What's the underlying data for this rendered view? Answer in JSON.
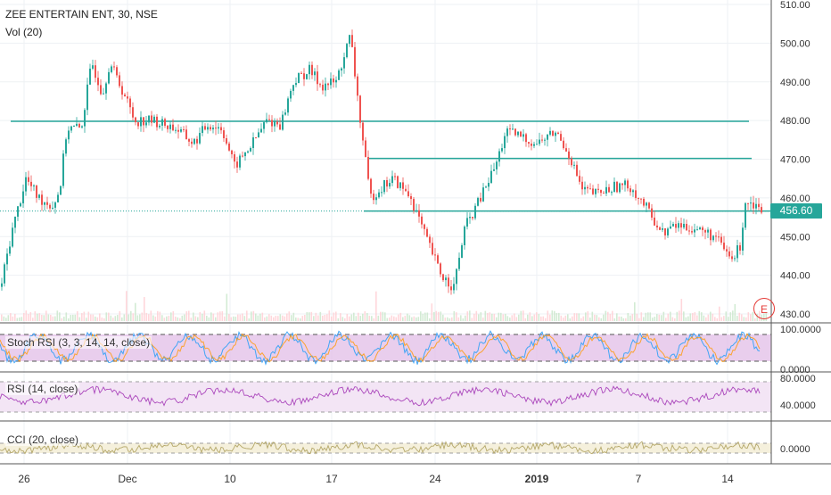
{
  "header": {
    "title": "ZEE ENTERTAIN ENT, 30, NSE",
    "volume_label": "Vol (20)"
  },
  "price_tag": "456.60",
  "earnings_badge": "E",
  "panes": {
    "stoch_label": "Stoch RSI (3, 3, 14, 14, close)",
    "rsi_label": "RSI (14, close)",
    "cci_label": "CCI (20, close)"
  },
  "colors": {
    "up": "#26a69a",
    "down": "#ef5350",
    "hline": "#26a69a",
    "stoch_fill": "#e1bee7",
    "rsi_fill": "#f3e5f5",
    "rsi_line": "#ab47bc",
    "cci_fill": "#f5f0dc",
    "cci_line": "#b5a86a"
  },
  "chart_data": [
    {
      "type": "candlestick",
      "title": "ZEE ENTERTAIN ENT, 30, NSE",
      "y_ticks": [
        "510.00",
        "500.00",
        "490.00",
        "480.00",
        "470.00",
        "460.00",
        "450.00",
        "440.00",
        "430.00"
      ],
      "ylim": [
        428,
        512
      ],
      "x_ticks": [
        "26",
        "Dec",
        "10",
        "17",
        "24",
        "2019",
        "7",
        "14"
      ],
      "last_price": 456.6,
      "horizontal_levels": [
        479.8,
        470.2,
        456.6
      ],
      "series": [
        {
          "x": 0,
          "y": 437
        },
        {
          "x": 12,
          "y": 451
        },
        {
          "x": 28,
          "y": 465
        },
        {
          "x": 42,
          "y": 460
        },
        {
          "x": 58,
          "y": 458
        },
        {
          "x": 66,
          "y": 462
        },
        {
          "x": 74,
          "y": 478
        },
        {
          "x": 90,
          "y": 478
        },
        {
          "x": 102,
          "y": 495
        },
        {
          "x": 114,
          "y": 487
        },
        {
          "x": 122,
          "y": 495
        },
        {
          "x": 138,
          "y": 487
        },
        {
          "x": 150,
          "y": 480
        },
        {
          "x": 170,
          "y": 480
        },
        {
          "x": 196,
          "y": 478
        },
        {
          "x": 216,
          "y": 474
        },
        {
          "x": 232,
          "y": 479
        },
        {
          "x": 248,
          "y": 478
        },
        {
          "x": 262,
          "y": 468
        },
        {
          "x": 282,
          "y": 474
        },
        {
          "x": 298,
          "y": 480
        },
        {
          "x": 314,
          "y": 479
        },
        {
          "x": 328,
          "y": 490
        },
        {
          "x": 346,
          "y": 493
        },
        {
          "x": 360,
          "y": 489
        },
        {
          "x": 376,
          "y": 490
        },
        {
          "x": 392,
          "y": 502
        },
        {
          "x": 402,
          "y": 482
        },
        {
          "x": 414,
          "y": 460
        },
        {
          "x": 428,
          "y": 463
        },
        {
          "x": 440,
          "y": 465
        },
        {
          "x": 460,
          "y": 460
        },
        {
          "x": 476,
          "y": 450
        },
        {
          "x": 494,
          "y": 440
        },
        {
          "x": 508,
          "y": 437
        },
        {
          "x": 520,
          "y": 452
        },
        {
          "x": 538,
          "y": 460
        },
        {
          "x": 556,
          "y": 469
        },
        {
          "x": 566,
          "y": 477
        },
        {
          "x": 582,
          "y": 476
        },
        {
          "x": 600,
          "y": 474
        },
        {
          "x": 622,
          "y": 477
        },
        {
          "x": 636,
          "y": 472
        },
        {
          "x": 652,
          "y": 462
        },
        {
          "x": 668,
          "y": 461
        },
        {
          "x": 690,
          "y": 463
        },
        {
          "x": 706,
          "y": 463
        },
        {
          "x": 722,
          "y": 458
        },
        {
          "x": 742,
          "y": 451
        },
        {
          "x": 758,
          "y": 453
        },
        {
          "x": 780,
          "y": 452
        },
        {
          "x": 800,
          "y": 450
        },
        {
          "x": 820,
          "y": 444
        },
        {
          "x": 830,
          "y": 448
        },
        {
          "x": 834,
          "y": 459
        },
        {
          "x": 842,
          "y": 459
        },
        {
          "x": 854,
          "y": 457
        }
      ]
    },
    {
      "type": "line",
      "title": "Stoch RSI (3, 3, 14, 14, close)",
      "y_ticks": [
        "100.0000",
        "0.0000"
      ],
      "ylim": [
        0,
        100
      ]
    },
    {
      "type": "line",
      "title": "RSI (14, close)",
      "y_ticks": [
        "80.0000",
        "40.0000"
      ],
      "ylim": [
        20,
        85
      ]
    },
    {
      "type": "line",
      "title": "CCI (20, close)",
      "y_ticks": [
        "0.0000"
      ]
    }
  ]
}
